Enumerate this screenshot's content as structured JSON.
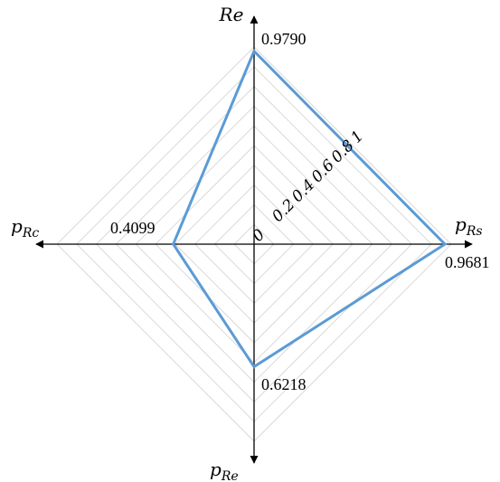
{
  "chart_data": {
    "type": "radar",
    "axes": [
      {
        "key": "top",
        "label": "Re",
        "subscript": "",
        "value": 0.979,
        "value_label": "0.9790"
      },
      {
        "key": "right",
        "label": "p",
        "subscript": "Rs",
        "value": 0.9681,
        "value_label": "0.9681"
      },
      {
        "key": "bottom",
        "label": "p",
        "subscript": "Re",
        "value": 0.6218,
        "value_label": "0.6218"
      },
      {
        "key": "left",
        "label": "p",
        "subscript": "Rc",
        "value": 0.4099,
        "value_label": "0.4099"
      }
    ],
    "range": [
      0,
      1
    ],
    "ticks": [
      {
        "value": 0,
        "label": "0"
      },
      {
        "value": 0.2,
        "label": "0.2"
      },
      {
        "value": 0.4,
        "label": "0.4"
      },
      {
        "value": 0.6,
        "label": "0.6"
      },
      {
        "value": 0.8,
        "label": "0.8"
      },
      {
        "value": 1,
        "label": "1"
      }
    ],
    "grid_rings": 10,
    "grid": true,
    "series_color": "#5b9bd5",
    "grid_color": "#d9d9d9",
    "axis_color": "#000000"
  }
}
